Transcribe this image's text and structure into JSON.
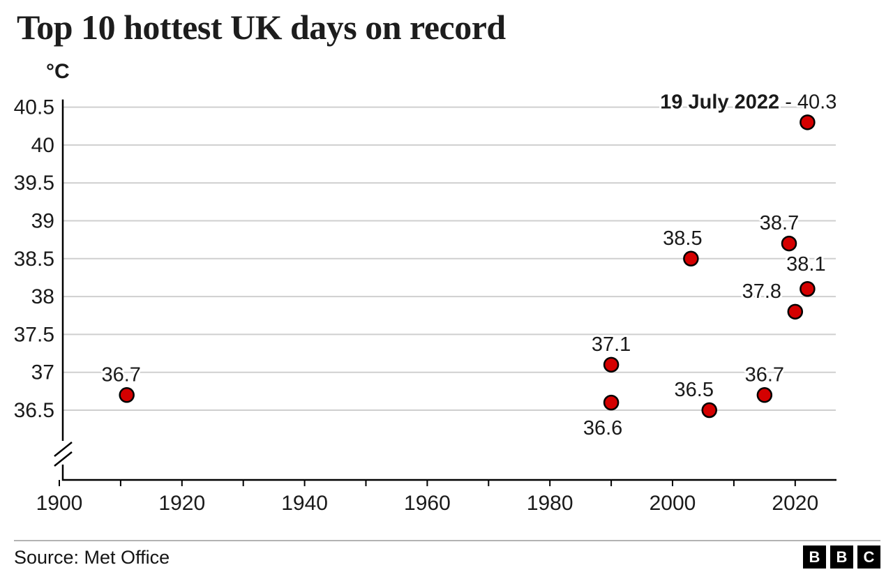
{
  "chart_data": {
    "type": "scatter",
    "title": "Top 10 hottest UK days on record",
    "unit_label": "°C",
    "xlabel": "",
    "ylabel": "°C",
    "x_ticks": [
      1900,
      1920,
      1940,
      1960,
      1980,
      2000,
      2020
    ],
    "x_minor_tick_step": 10,
    "x_range": [
      1900,
      2027
    ],
    "y_ticks": [
      "36.5",
      "37",
      "37.5",
      "38",
      "38.5",
      "39",
      "39.5",
      "40",
      "40.5"
    ],
    "y_tick_values": [
      36.5,
      37,
      37.5,
      38,
      38.5,
      39,
      39.5,
      40,
      40.5
    ],
    "y_range_display": [
      36.5,
      40.5
    ],
    "axis_break": true,
    "grid": true,
    "legend": "none",
    "point_color": "#d40000",
    "point_stroke": "#000000",
    "annotation_separator": " - ",
    "points": [
      {
        "year": 1911,
        "temp": 36.7,
        "label": "36.7"
      },
      {
        "year": 1990,
        "temp": 37.1,
        "label": "37.1"
      },
      {
        "year": 1990,
        "temp": 36.6,
        "label": "36.6"
      },
      {
        "year": 2003,
        "temp": 38.5,
        "label": "38.5"
      },
      {
        "year": 2006,
        "temp": 36.5,
        "label": "36.5"
      },
      {
        "year": 2015,
        "temp": 36.7,
        "label": "36.7"
      },
      {
        "year": 2019,
        "temp": 38.7,
        "label": "38.7"
      },
      {
        "year": 2020,
        "temp": 37.8,
        "label": "37.8"
      },
      {
        "year": 2022,
        "temp": 38.1,
        "label": "38.1"
      },
      {
        "year": 2022,
        "temp": 40.3,
        "label": "40.3",
        "annotation": "19 July 2022"
      }
    ]
  },
  "footer": {
    "source_label": "Source: Met Office",
    "logo_letters": [
      "B",
      "B",
      "C"
    ]
  }
}
